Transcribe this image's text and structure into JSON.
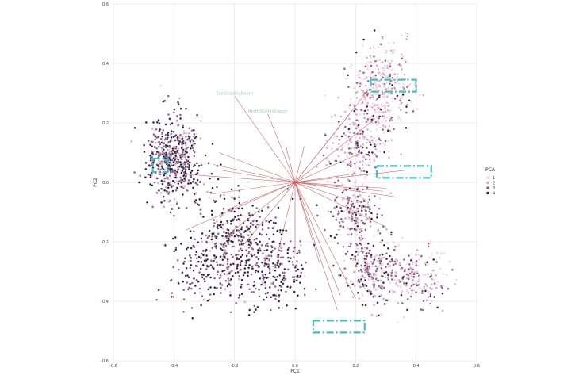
{
  "chart_data": {
    "type": "scatter",
    "xlabel": "PC1",
    "ylabel": "PC2",
    "xlim": [
      -0.6,
      0.6
    ],
    "ylim": [
      -0.6,
      0.6
    ],
    "xticks": [
      "-0.6",
      "-0.4",
      "-0.2",
      "0.0",
      "0.2",
      "0.4",
      "0.6"
    ],
    "yticks": [
      "-0.6",
      "-0.4",
      "-0.2",
      "0.0",
      "0.2",
      "0.4",
      "0.6"
    ],
    "grid": true,
    "legend": {
      "title": "PCA",
      "placement": "right",
      "entries": [
        {
          "label": "1",
          "color": "#f1d3de"
        },
        {
          "label": "2",
          "color": "#d9a3bb"
        },
        {
          "label": "3",
          "color": "#8f5a86"
        },
        {
          "label": "4",
          "color": "#2b1a3f"
        }
      ]
    },
    "clusters": [
      {
        "cx": -0.4,
        "cy": 0.08,
        "sx": 0.045,
        "sy": 0.07,
        "n": 520,
        "w": [
          0.05,
          0.12,
          0.28,
          0.55
        ]
      },
      {
        "cx": -0.2,
        "cy": -0.2,
        "sx": 0.07,
        "sy": 0.09,
        "n": 360,
        "w": [
          0.02,
          0.05,
          0.35,
          0.58
        ]
      },
      {
        "cx": -0.05,
        "cy": -0.28,
        "sx": 0.05,
        "sy": 0.07,
        "n": 180,
        "w": [
          0.02,
          0.06,
          0.4,
          0.52
        ]
      },
      {
        "cx": 0.28,
        "cy": 0.3,
        "sx": 0.05,
        "sy": 0.08,
        "n": 380,
        "w": [
          0.45,
          0.3,
          0.17,
          0.08
        ]
      },
      {
        "cx": 0.2,
        "cy": 0.12,
        "sx": 0.05,
        "sy": 0.06,
        "n": 220,
        "w": [
          0.4,
          0.3,
          0.2,
          0.1
        ]
      },
      {
        "cx": 0.2,
        "cy": -0.1,
        "sx": 0.04,
        "sy": 0.05,
        "n": 200,
        "w": [
          0.15,
          0.25,
          0.35,
          0.25
        ]
      },
      {
        "cx": 0.25,
        "cy": -0.3,
        "sx": 0.05,
        "sy": 0.06,
        "n": 260,
        "w": [
          0.2,
          0.25,
          0.3,
          0.25
        ]
      },
      {
        "cx": 0.4,
        "cy": -0.32,
        "sx": 0.05,
        "sy": 0.05,
        "n": 180,
        "w": [
          0.35,
          0.3,
          0.25,
          0.1
        ]
      },
      {
        "cx": -0.3,
        "cy": -0.3,
        "sx": 0.06,
        "sy": 0.06,
        "n": 140,
        "w": [
          0.02,
          0.05,
          0.4,
          0.53
        ]
      }
    ],
    "loadings": [
      {
        "label": "EastShadingDepth",
        "x": -0.2,
        "y": 0.29
      },
      {
        "label": "NorthShadingDepth",
        "x": -0.09,
        "y": 0.23
      },
      {
        "label": "",
        "x": -0.03,
        "y": 0.12
      },
      {
        "label": "",
        "x": 0.03,
        "y": 0.12
      },
      {
        "label": "",
        "x": -0.25,
        "y": 0.1
      },
      {
        "label": "",
        "x": -0.27,
        "y": 0.06
      },
      {
        "label": "",
        "x": -0.24,
        "y": 0.04
      },
      {
        "label": "",
        "x": -0.4,
        "y": 0.03
      },
      {
        "label": "",
        "x": -0.28,
        "y": -0.04
      },
      {
        "label": "",
        "x": -0.22,
        "y": -0.09
      },
      {
        "label": "",
        "x": -0.36,
        "y": -0.16
      },
      {
        "label": "",
        "x": -0.24,
        "y": -0.19
      },
      {
        "label": "",
        "x": -0.17,
        "y": -0.21
      },
      {
        "label": "",
        "x": -0.06,
        "y": -0.25
      },
      {
        "label": "",
        "x": 0.0,
        "y": -0.24
      },
      {
        "label": "",
        "x": 0.08,
        "y": -0.27
      },
      {
        "label": "",
        "x": 0.14,
        "y": -0.43
      },
      {
        "label": "",
        "x": 0.15,
        "y": -0.38
      },
      {
        "label": "",
        "x": 0.2,
        "y": -0.39
      },
      {
        "label": "",
        "x": 0.18,
        "y": 0.23
      },
      {
        "label": "",
        "x": 0.25,
        "y": 0.32
      },
      {
        "label": "",
        "x": 0.26,
        "y": 0.21
      },
      {
        "label": "",
        "x": 0.22,
        "y": 0.1
      },
      {
        "label": "",
        "x": 0.2,
        "y": 0.03
      },
      {
        "label": "",
        "x": 0.3,
        "y": -0.02
      },
      {
        "label": "",
        "x": 0.29,
        "y": -0.03
      },
      {
        "label": "",
        "x": 0.18,
        "y": -0.06
      },
      {
        "label": "",
        "x": 0.3,
        "y": -0.15
      },
      {
        "label": "",
        "x": 0.36,
        "y": 0.04
      },
      {
        "label": "",
        "x": 0.34,
        "y": -0.05
      }
    ],
    "highlight_boxes": [
      {
        "x0": 0.25,
        "x1": 0.4,
        "y0": 0.305,
        "y1": 0.345
      },
      {
        "x0": 0.27,
        "x1": 0.45,
        "y0": 0.015,
        "y1": 0.055
      },
      {
        "x0": -0.47,
        "x1": -0.42,
        "y0": 0.035,
        "y1": 0.08
      },
      {
        "x0": 0.06,
        "x1": 0.23,
        "y0": -0.505,
        "y1": -0.465
      }
    ]
  }
}
